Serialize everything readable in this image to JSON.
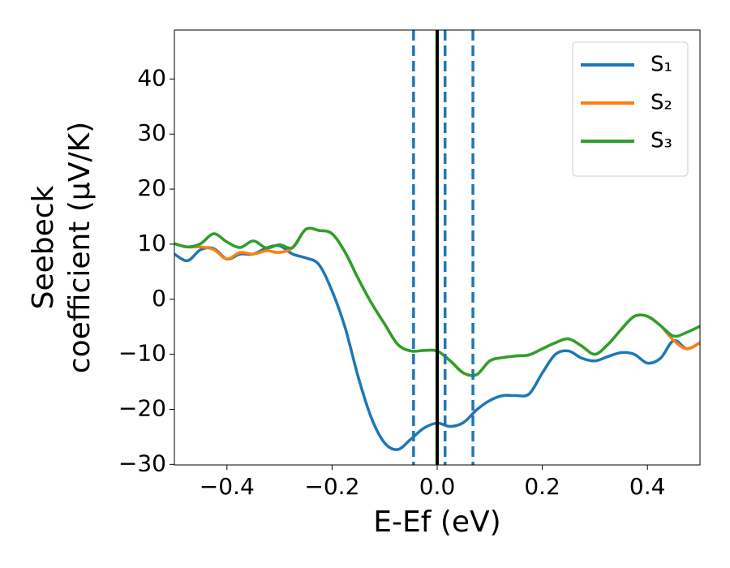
{
  "chart_data": {
    "type": "line",
    "xlabel": "E-Ef (eV)",
    "ylabel": [
      "Seebeck",
      "coefficient  (μV/K)"
    ],
    "x": [
      -0.5,
      -0.475,
      -0.45,
      -0.425,
      -0.4,
      -0.375,
      -0.35,
      -0.325,
      -0.3,
      -0.275,
      -0.25,
      -0.225,
      -0.2,
      -0.175,
      -0.15,
      -0.125,
      -0.1,
      -0.075,
      -0.05,
      -0.025,
      0,
      0.025,
      0.05,
      0.075,
      0.1,
      0.125,
      0.15,
      0.175,
      0.2,
      0.225,
      0.25,
      0.275,
      0.3,
      0.325,
      0.35,
      0.375,
      0.4,
      0.425,
      0.45,
      0.475,
      0.5
    ],
    "series": [
      {
        "name": "S₁",
        "color": "#1f77b4",
        "values": [
          8.2,
          7.0,
          9.0,
          9.2,
          7.3,
          8.2,
          8.2,
          9.3,
          9.7,
          8.2,
          7.5,
          6.3,
          1.5,
          -5.2,
          -14.2,
          -21.6,
          -26.1,
          -27.3,
          -25.4,
          -23.4,
          -22.5,
          -23.1,
          -22.4,
          -20.1,
          -18.4,
          -17.5,
          -17.5,
          -17.2,
          -13.4,
          -10.0,
          -9.4,
          -10.7,
          -11.2,
          -10.4,
          -9.7,
          -10.0,
          -11.6,
          -10.7,
          -7.5,
          -9.0,
          -7.9
        ]
      },
      {
        "name": "S₂",
        "color": "#ff7f0e",
        "values": [
          10.1,
          9.5,
          9.5,
          9.0,
          7.3,
          8.5,
          8.2,
          8.8,
          8.5,
          9.4,
          12.7,
          12.5,
          11.9,
          8.5,
          3.7,
          -0.7,
          -4.5,
          -8.2,
          -9.4,
          -9.3,
          -9.4,
          -11.2,
          -13.4,
          -13.7,
          -11.2,
          -10.6,
          -10.3,
          -10.1,
          -9.0,
          -7.9,
          -7.2,
          -8.5,
          -10.0,
          -8.2,
          -5.5,
          -3.1,
          -3.1,
          -4.8,
          -7.5,
          -9.0,
          -7.9
        ]
      },
      {
        "name": "S₃",
        "color": "#2ca02c",
        "values": [
          10.1,
          9.5,
          10.1,
          11.9,
          10.4,
          9.4,
          10.6,
          9.3,
          9.9,
          9.4,
          12.7,
          12.5,
          11.9,
          8.5,
          3.7,
          -0.7,
          -4.5,
          -8.2,
          -9.4,
          -9.3,
          -9.4,
          -11.2,
          -13.4,
          -13.7,
          -11.2,
          -10.6,
          -10.3,
          -10.1,
          -9.0,
          -7.9,
          -7.2,
          -8.5,
          -10.0,
          -8.2,
          -5.5,
          -3.1,
          -3.1,
          -4.8,
          -6.7,
          -6.0,
          -4.9
        ]
      }
    ],
    "vlines": [
      {
        "x": 0,
        "color": "#000000",
        "dashed": false
      },
      {
        "x": -0.045,
        "color": "#1f77b4",
        "dashed": true
      },
      {
        "x": 0.015,
        "color": "#1f77b4",
        "dashed": true
      },
      {
        "x": 0.068,
        "color": "#1f77b4",
        "dashed": true
      }
    ],
    "xlim": [
      -0.5,
      0.5
    ],
    "xticks": [
      {
        "value": -0.4,
        "label": "−0.4"
      },
      {
        "value": -0.2,
        "label": "−0.2"
      },
      {
        "value": 0,
        "label": "0.0"
      },
      0.2,
      0.4
    ],
    "ylim": [
      -30.1,
      48.9
    ],
    "yticks": [
      {
        "value": -30,
        "label": "−30"
      },
      {
        "value": -20,
        "label": "−20"
      },
      {
        "value": -10,
        "label": "−10"
      },
      0,
      10,
      20,
      30,
      40
    ],
    "legend": "upper right",
    "grid": false
  }
}
